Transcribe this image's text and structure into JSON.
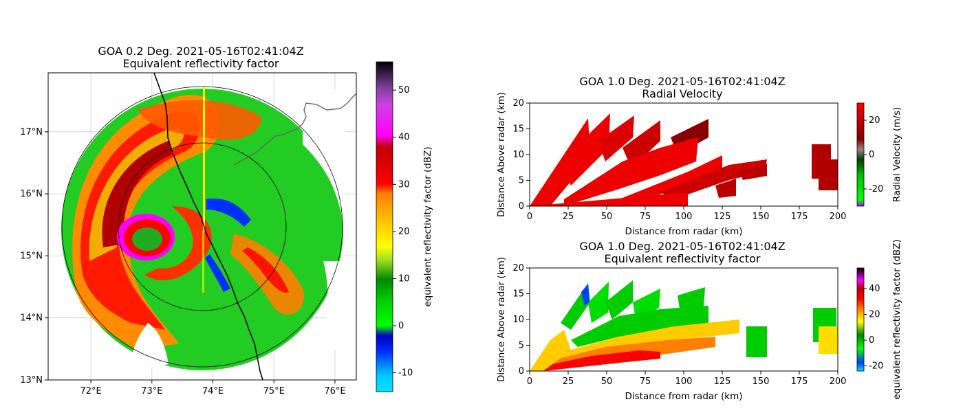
{
  "chart_data": [
    {
      "type": "heatmap",
      "panel": "ppi",
      "title_line1": "GOA 0.2 Deg. 2021-05-16T02:41:04Z",
      "title_line2": "Equivalent reflectivity factor",
      "lon_range": [
        71.3,
        76.35
      ],
      "lat_range": [
        13.0,
        17.95
      ],
      "xticks": [
        "72°E",
        "73°E",
        "74°E",
        "75°E",
        "76°E"
      ],
      "xtick_values": [
        72,
        73,
        74,
        75,
        76
      ],
      "yticks": [
        "13°N",
        "14°N",
        "15°N",
        "16°N",
        "17°N"
      ],
      "ytick_values": [
        13,
        14,
        15,
        16,
        17
      ],
      "radar_center": [
        73.85,
        15.45
      ],
      "range_rings_km": [
        150,
        250
      ],
      "colorbar": {
        "label": "equivalent reflectivity factor (dBZ)",
        "range": [
          -14,
          56
        ],
        "ticks": [
          -10,
          0,
          10,
          20,
          30,
          40,
          50
        ]
      },
      "colors": {
        "cyan": "#00e5ff",
        "blue": "#0000ff",
        "green": "#00cc00",
        "yellow": "#ffff00",
        "orange": "#ff8c00",
        "red": "#ff0000",
        "darkred": "#b00000",
        "magenta": "#ff00ff",
        "purple": "#8040a0"
      }
    },
    {
      "type": "heatmap",
      "panel": "rhi-velocity",
      "title_line1": "GOA 1.0 Deg. 2021-05-16T02:41:04Z",
      "title_line2": "Radial Velocity",
      "xlabel": "Distance from radar (km)",
      "ylabel": "Distance Above radar  (km)",
      "xlim": [
        0,
        200
      ],
      "ylim": [
        0,
        20
      ],
      "xticks": [
        0,
        25,
        50,
        75,
        100,
        125,
        150,
        175,
        200
      ],
      "yticks": [
        0,
        5,
        10,
        15,
        20
      ],
      "colorbar": {
        "label": "Radial Velocity (m/s)",
        "range": [
          -30,
          30
        ],
        "ticks": [
          -20,
          0,
          20
        ]
      },
      "colors": {
        "main": "#ee0000",
        "dark": "#a00000"
      }
    },
    {
      "type": "heatmap",
      "panel": "rhi-reflectivity",
      "title_line1": "GOA 1.0 Deg. 2021-05-16T02:41:04Z",
      "title_line2": "Equivalent reflectivity factor",
      "xlabel": "Distance from radar (km)",
      "ylabel": "Distance Above radar  (km)",
      "xlim": [
        0,
        200
      ],
      "ylim": [
        0,
        20
      ],
      "xticks": [
        0,
        25,
        50,
        75,
        100,
        125,
        150,
        175,
        200
      ],
      "yticks": [
        0,
        5,
        10,
        15,
        20
      ],
      "colorbar": {
        "label": "equivalent reflectivity factor (dBZ)",
        "range": [
          -24,
          56
        ],
        "ticks": [
          -20,
          0,
          20,
          40
        ]
      },
      "colors": {
        "green": "#00cc00",
        "yellow": "#ffdd00",
        "red": "#ff0000"
      }
    }
  ]
}
